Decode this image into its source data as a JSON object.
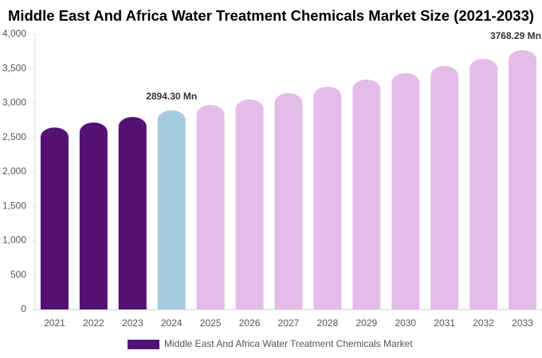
{
  "chart_data": {
    "type": "bar",
    "title": "Middle East And Africa Water Treatment Chemicals Market Size (2021-2033)",
    "categories": [
      "2021",
      "2022",
      "2023",
      "2024",
      "2025",
      "2026",
      "2027",
      "2028",
      "2029",
      "2030",
      "2031",
      "2032",
      "2033"
    ],
    "series": [
      {
        "name": "Middle East And Africa Water Treatment Chemicals Market",
        "color": "#541174",
        "values": [
          2645,
          2717,
          2798,
          2894.3,
          2971,
          3052,
          3145,
          3237,
          3341,
          3434,
          3538,
          3642,
          3768.29
        ],
        "value_labels": [
          null,
          null,
          null,
          "2894.30 Mn",
          null,
          null,
          null,
          null,
          null,
          null,
          null,
          null,
          "3768.29 Mn"
        ],
        "colors": [
          "#541174",
          "#541174",
          "#541174",
          "#a6cbe0",
          "#e5bce9",
          "#e5bce9",
          "#e5bce9",
          "#e5bce9",
          "#e5bce9",
          "#e5bce9",
          "#e5bce9",
          "#e5bce9",
          "#e5bce9"
        ]
      }
    ],
    "ylim": [
      0,
      4000
    ],
    "yticks": [
      0,
      500,
      {
        "value": 1000,
        "label": "1,000"
      },
      {
        "value": 1500,
        "label": "1,500"
      },
      {
        "value": 2000,
        "label": "2,000"
      },
      {
        "value": 2500,
        "label": "2,500"
      },
      {
        "value": 3000,
        "label": "3,000"
      },
      {
        "value": 3500,
        "label": "3,500"
      },
      {
        "value": 4000,
        "label": "4,000"
      }
    ],
    "grid": false
  }
}
